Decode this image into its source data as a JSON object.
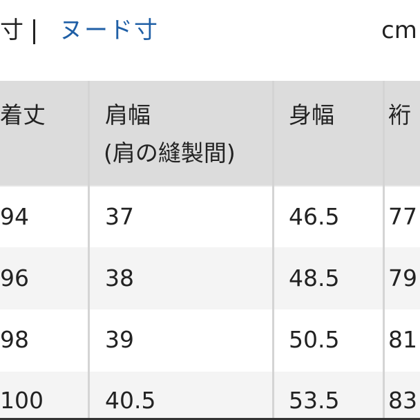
{
  "tabs": {
    "left_label": "寸",
    "active_label": "ヌード寸",
    "right_label": "cm"
  },
  "colors": {
    "tab_active": "#1f5fa6",
    "header_bg": "#dcdcdc",
    "row_alt_bg": "#f4f4f4"
  },
  "table": {
    "headers": [
      {
        "line1": "着丈",
        "line2": ""
      },
      {
        "line1": "肩幅",
        "line2": "(肩の縫製間)"
      },
      {
        "line1": "身幅",
        "line2": ""
      },
      {
        "line1": "裄",
        "line2": ""
      }
    ],
    "rows": [
      [
        "94",
        "37",
        "46.5",
        "77"
      ],
      [
        "96",
        "38",
        "48.5",
        "79"
      ],
      [
        "98",
        "39",
        "50.5",
        "81"
      ],
      [
        "100",
        "40.5",
        "53.5",
        "83"
      ]
    ]
  }
}
